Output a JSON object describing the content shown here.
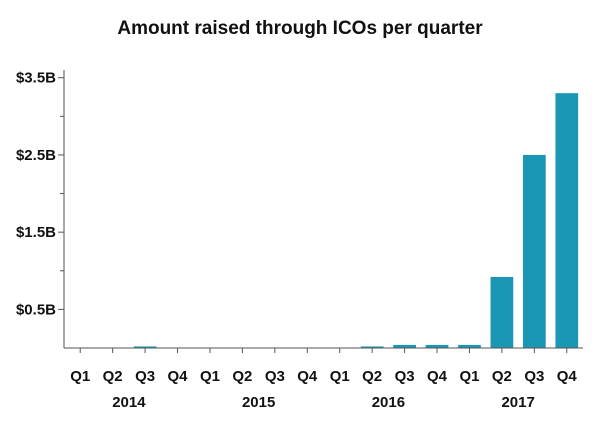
{
  "chart_data": {
    "type": "bar",
    "title": "Amount raised through ICOs per quarter",
    "xlabel": "",
    "ylabel": "",
    "categories": [
      "Q1",
      "Q2",
      "Q3",
      "Q4",
      "Q1",
      "Q2",
      "Q3",
      "Q4",
      "Q1",
      "Q2",
      "Q3",
      "Q4",
      "Q1",
      "Q2",
      "Q3",
      "Q4"
    ],
    "years": [
      {
        "label": "2014",
        "quarters": 4
      },
      {
        "label": "2015",
        "quarters": 4
      },
      {
        "label": "2016",
        "quarters": 4
      },
      {
        "label": "2017",
        "quarters": 4
      }
    ],
    "values": [
      0,
      0,
      0.02,
      0,
      0,
      0,
      0,
      0,
      0,
      0.02,
      0.04,
      0.04,
      0.04,
      0.92,
      2.5,
      3.3
    ],
    "value_unit": "billion USD",
    "ylim": [
      0,
      3.6
    ],
    "yticks": [
      {
        "value": 0.5,
        "label": "$0.5B"
      },
      {
        "value": 1.5,
        "label": "$1.5B"
      },
      {
        "value": 2.5,
        "label": "$2.5B"
      },
      {
        "value": 3.5,
        "label": "$3.5B"
      }
    ],
    "minor_yticks": [
      1.0,
      2.0,
      3.0
    ],
    "grid": false,
    "legend": "none",
    "bar_color": "#1a97b5",
    "axis_color": "#555555"
  }
}
